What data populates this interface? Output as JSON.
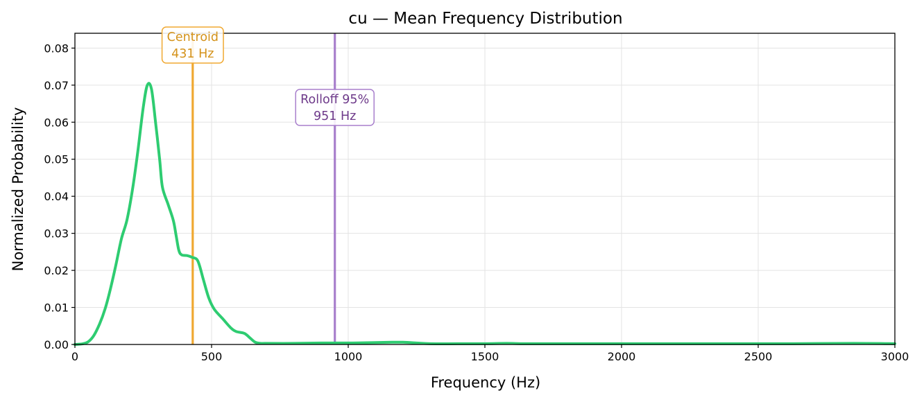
{
  "chart_data": {
    "type": "line",
    "title": "cu  —  Mean Frequency Distribution",
    "xlabel": "Frequency (Hz)",
    "ylabel": "Normalized Probability",
    "xlim": [
      0,
      3000
    ],
    "ylim": [
      0,
      0.084
    ],
    "x_ticks": [
      0,
      500,
      1000,
      1500,
      2000,
      2500,
      3000
    ],
    "x_tick_labels": [
      "0",
      "500",
      "1000",
      "1500",
      "2000",
      "2500",
      "3000"
    ],
    "y_ticks": [
      0,
      0.01,
      0.02,
      0.03,
      0.04,
      0.05,
      0.06,
      0.07,
      0.08
    ],
    "y_tick_labels": [
      "0.00",
      "0.01",
      "0.02",
      "0.03",
      "0.04",
      "0.05",
      "0.06",
      "0.07",
      "0.08"
    ],
    "grid": true,
    "series": [
      {
        "color": "#2ecc71",
        "x": [
          0,
          30,
          50,
          70,
          90,
          110,
          130,
          150,
          170,
          190,
          210,
          230,
          250,
          265,
          280,
          295,
          310,
          320,
          340,
          360,
          370,
          380,
          390,
          410,
          430,
          450,
          470,
          490,
          510,
          540,
          570,
          590,
          620,
          640,
          660,
          680,
          700,
          800,
          900,
          1000,
          1100,
          1160,
          1200,
          1250,
          1300,
          1400,
          1500,
          1580,
          1650,
          1800,
          2000,
          2200,
          2400,
          2600,
          2850,
          3000
        ],
        "y": [
          0.0,
          0.0002,
          0.0008,
          0.0025,
          0.0055,
          0.0095,
          0.015,
          0.0215,
          0.0285,
          0.0335,
          0.0415,
          0.052,
          0.064,
          0.07,
          0.069,
          0.06,
          0.05,
          0.0425,
          0.038,
          0.0335,
          0.0295,
          0.0255,
          0.0242,
          0.024,
          0.0235,
          0.0225,
          0.0175,
          0.0125,
          0.0095,
          0.007,
          0.0045,
          0.0035,
          0.003,
          0.0018,
          0.0006,
          0.0003,
          0.0003,
          0.0003,
          0.0004,
          0.0004,
          0.0005,
          0.0006,
          0.0006,
          0.0004,
          0.0002,
          0.0002,
          0.0002,
          0.0003,
          0.0002,
          0.0002,
          0.0002,
          0.0002,
          0.0002,
          0.0002,
          0.0003,
          0.0002
        ]
      }
    ],
    "annotations": [
      {
        "label": "Centroid",
        "value_label": "431 Hz",
        "x": 431,
        "color": "#f0a830",
        "text_color": "#d4921a"
      },
      {
        "label": "Rolloff 95%",
        "value_label": "951 Hz",
        "x": 951,
        "color": "#a87fcc",
        "text_color": "#6e3a8a"
      }
    ]
  }
}
